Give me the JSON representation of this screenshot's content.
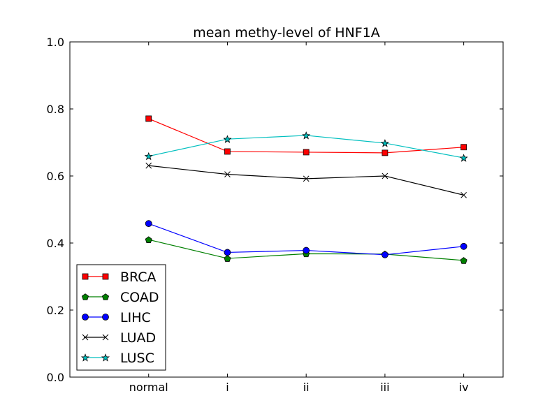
{
  "chart_data": {
    "type": "line",
    "title": "mean methy-level of HNF1A",
    "xlabel": "",
    "ylabel": "",
    "categories": [
      "normal",
      "i",
      "ii",
      "iii",
      "iv"
    ],
    "xlim": [
      -1,
      4.5
    ],
    "ylim": [
      0.0,
      1.0
    ],
    "yticks": [
      "0.0",
      "0.2",
      "0.4",
      "0.6",
      "0.8",
      "1.0"
    ],
    "grid": false,
    "legend_position": "lower-left",
    "series": [
      {
        "name": "BRCA",
        "color": "#ff0000",
        "marker": "square",
        "values": [
          0.771,
          0.673,
          0.671,
          0.669,
          0.686
        ]
      },
      {
        "name": "COAD",
        "color": "#008000",
        "marker": "pentagon",
        "values": [
          0.41,
          0.354,
          0.368,
          0.367,
          0.348
        ]
      },
      {
        "name": "LIHC",
        "color": "#0000ff",
        "marker": "circle",
        "values": [
          0.458,
          0.372,
          0.378,
          0.365,
          0.39
        ]
      },
      {
        "name": "LUAD",
        "color": "#000000",
        "marker": "x",
        "values": [
          0.631,
          0.605,
          0.592,
          0.6,
          0.543
        ]
      },
      {
        "name": "LUSC",
        "color": "#00bfbf",
        "marker": "star",
        "values": [
          0.659,
          0.71,
          0.721,
          0.698,
          0.654
        ]
      }
    ]
  }
}
